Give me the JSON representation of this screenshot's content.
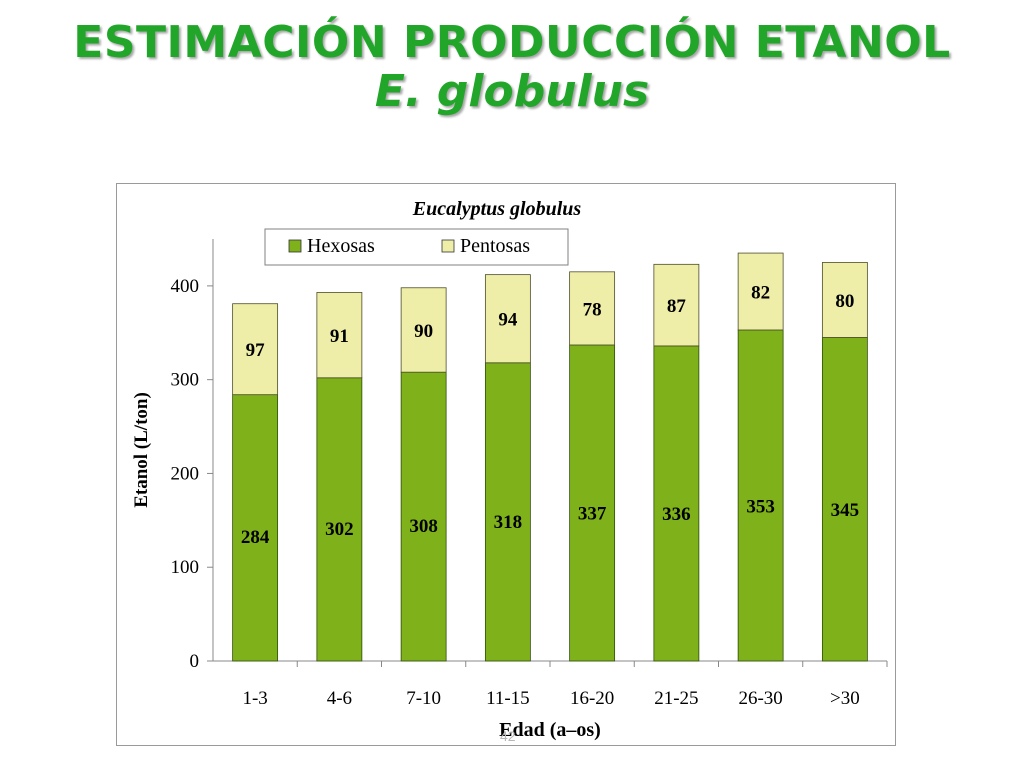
{
  "slide": {
    "title_line1": "ESTIMACIÓN PRODUCCIÓN ETANOL",
    "title_line2": "E. globulus",
    "page_number": "42"
  },
  "colors": {
    "title": "#22a62a",
    "hexosas": "#7fb21a",
    "pentosas": "#eeeea8",
    "axis": "#888888"
  },
  "chart_data": {
    "type": "bar",
    "stacked": true,
    "title": "Eucalyptus globulus",
    "xlabel": "Edad (a–os)",
    "ylabel": "Etanol (L/ton)",
    "ylim": [
      0,
      450
    ],
    "yticks": [
      0,
      100,
      200,
      300,
      400
    ],
    "grid": false,
    "legend_position": "top",
    "categories": [
      "1-3",
      "4-6",
      "7-10",
      "11-15",
      "16-20",
      "21-25",
      "26-30",
      ">30"
    ],
    "series": [
      {
        "name": "Hexosas",
        "values": [
          284,
          302,
          308,
          318,
          337,
          336,
          353,
          345
        ]
      },
      {
        "name": "Pentosas",
        "values": [
          97,
          91,
          90,
          94,
          78,
          87,
          82,
          80
        ]
      }
    ]
  }
}
